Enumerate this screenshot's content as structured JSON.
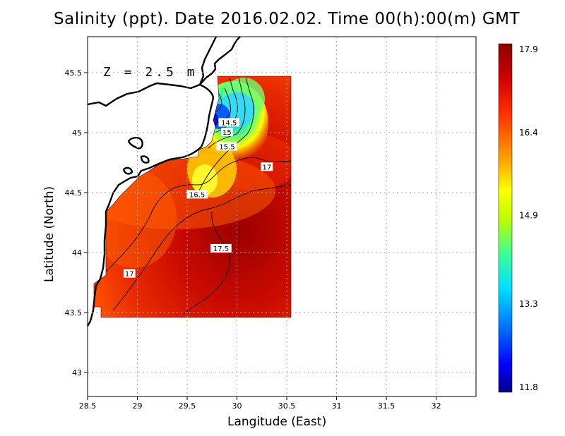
{
  "title": "Salinity (ppt). Date 2016.02.02. Time 00(h):00(m) GMT",
  "depth_label": "Z = 2.5 m",
  "x_axis_label": "Langitude (East)",
  "y_axis_label": "Latitude (North)",
  "chart_data": {
    "type": "heatmap",
    "variable": "Salinity (ppt)",
    "x_ticks": [
      "28.5",
      "29",
      "29.5",
      "30",
      "30.5",
      "31",
      "31.5",
      "32"
    ],
    "y_ticks": [
      "45.5",
      "45",
      "44.5",
      "44",
      "43.5",
      "43"
    ],
    "xlim": [
      28.5,
      32.4
    ],
    "ylim": [
      42.8,
      45.8
    ],
    "grid": "dotted",
    "colorbar": {
      "ticks": [
        "17.9",
        "16.4",
        "14.9",
        "13.3",
        "11.8"
      ],
      "min": 11.8,
      "max": 17.9,
      "colors": [
        "#00008b",
        "#0000ff",
        "#0080ff",
        "#00e0ff",
        "#40ff90",
        "#c0ff00",
        "#ffff00",
        "#ffa000",
        "#ff3000",
        "#d00000",
        "#8b0000"
      ]
    },
    "contour_labels": [
      {
        "text": "14.5",
        "lon": 29.92,
        "lat": 45.08
      },
      {
        "text": "15",
        "lon": 29.9,
        "lat": 45.0
      },
      {
        "text": "15.5",
        "lon": 29.9,
        "lat": 44.88
      },
      {
        "text": "17",
        "lon": 30.3,
        "lat": 44.71
      },
      {
        "text": "16.5",
        "lon": 29.6,
        "lat": 44.48
      },
      {
        "text": "17.5",
        "lon": 29.84,
        "lat": 44.03
      },
      {
        "text": "17",
        "lon": 28.92,
        "lat": 43.82
      }
    ],
    "salinity_samples": [
      {
        "lon": 29.75,
        "lat": 45.25,
        "value": 12.0
      },
      {
        "lon": 29.9,
        "lat": 45.2,
        "value": 13.3
      },
      {
        "lon": 29.9,
        "lat": 45.4,
        "value": 14.5
      },
      {
        "lon": 29.9,
        "lat": 44.95,
        "value": 15.0
      },
      {
        "lon": 29.65,
        "lat": 44.65,
        "value": 16.0
      },
      {
        "lon": 29.3,
        "lat": 44.7,
        "value": 16.4
      },
      {
        "lon": 30.3,
        "lat": 44.8,
        "value": 17.0
      },
      {
        "lon": 30.3,
        "lat": 44.3,
        "value": 17.5
      },
      {
        "lon": 30.3,
        "lat": 43.6,
        "value": 17.9
      },
      {
        "lon": 29.0,
        "lat": 43.9,
        "value": 17.0
      },
      {
        "lon": 29.3,
        "lat": 43.7,
        "value": 17.5
      }
    ]
  }
}
